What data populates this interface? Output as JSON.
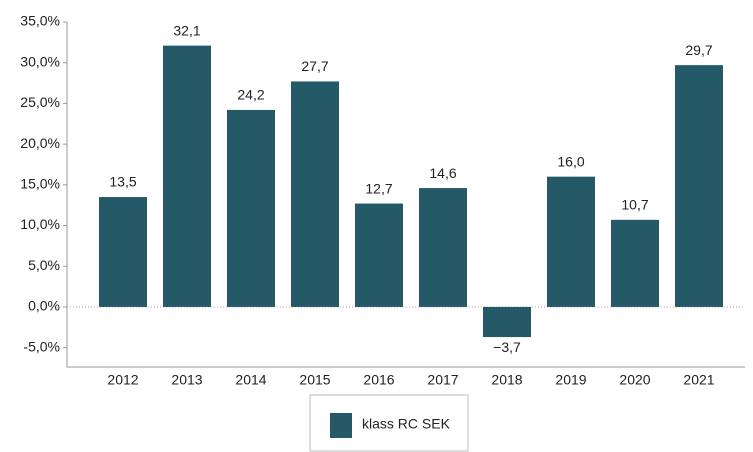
{
  "chart_data": {
    "type": "bar",
    "categories": [
      "2012",
      "2013",
      "2014",
      "2015",
      "2016",
      "2017",
      "2018",
      "2019",
      "2020",
      "2021"
    ],
    "series": [
      {
        "name": "klass RC SEK",
        "color": "#245a67",
        "values": [
          13.5,
          32.1,
          24.2,
          27.7,
          12.7,
          14.6,
          -3.7,
          16.0,
          10.7,
          29.7
        ],
        "value_labels": [
          "13,5",
          "32,1",
          "24,2",
          "27,7",
          "12,7",
          "14,6",
          "−3,7",
          "16,0",
          "10,7",
          "29,7"
        ]
      }
    ],
    "ylim": [
      -7.5,
      35
    ],
    "yticks": [
      {
        "value": -5,
        "label": "-5,0%"
      },
      {
        "value": 0,
        "label": "0,0%"
      },
      {
        "value": 5,
        "label": "5,0%"
      },
      {
        "value": 10,
        "label": "10,0%"
      },
      {
        "value": 15,
        "label": "15,0%"
      },
      {
        "value": 20,
        "label": "20,0%"
      },
      {
        "value": 25,
        "label": "25,0%"
      },
      {
        "value": 30,
        "label": "30,0%"
      },
      {
        "value": 35,
        "label": "35,0%"
      }
    ],
    "grid": false
  }
}
